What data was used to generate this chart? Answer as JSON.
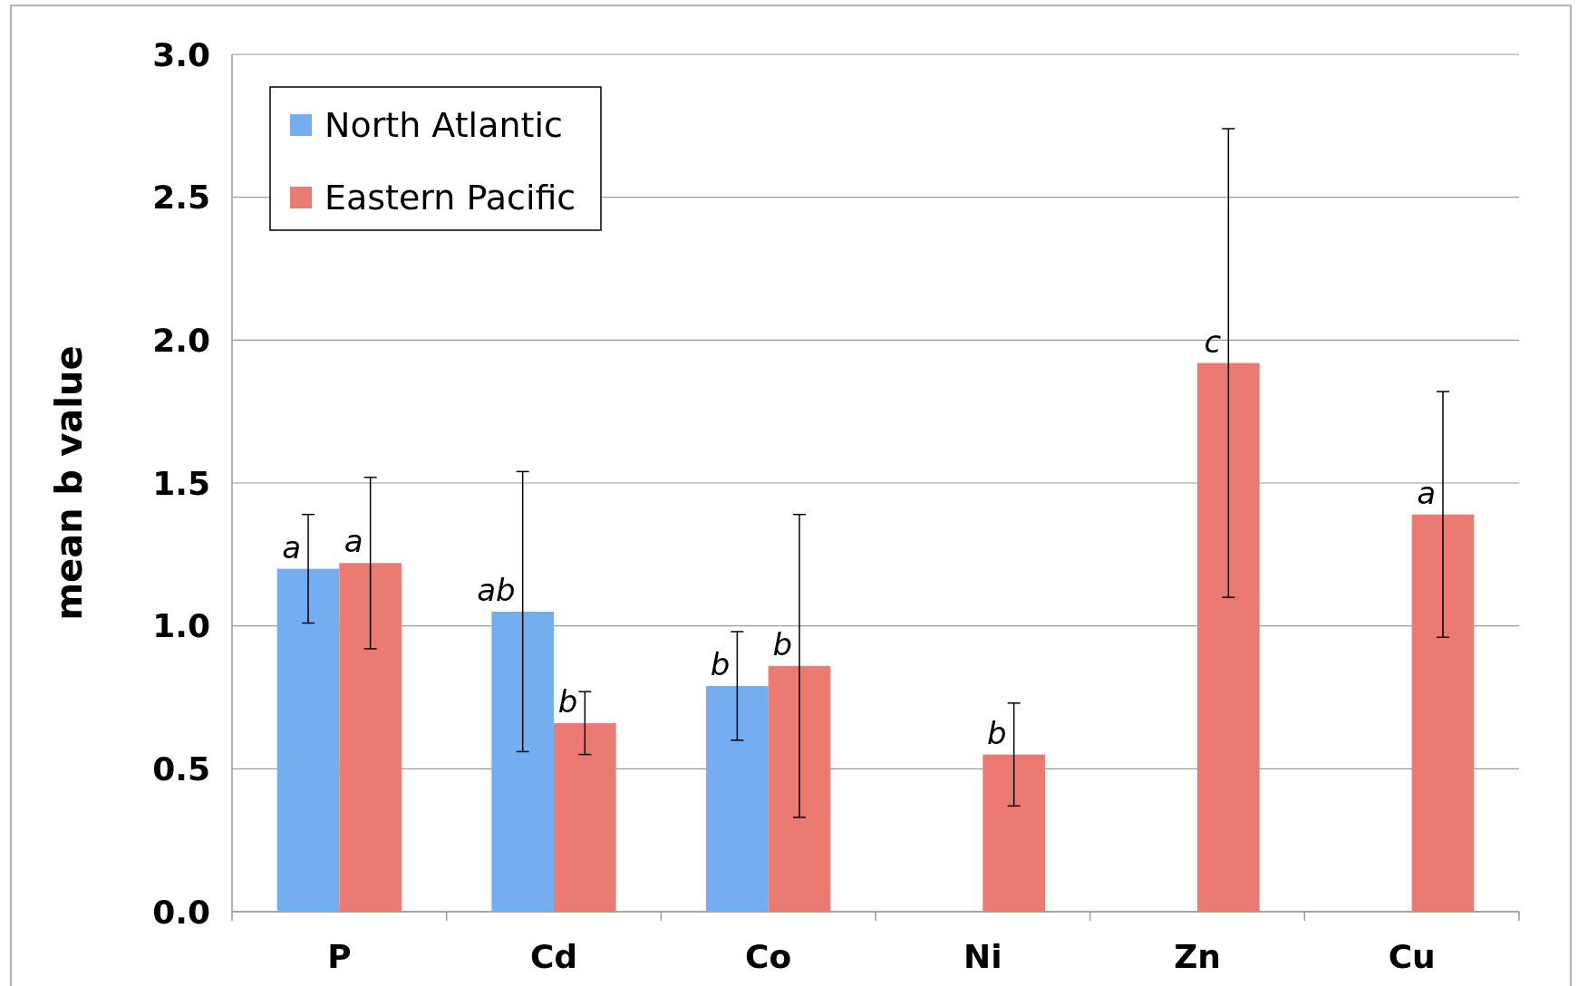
{
  "chart_data": {
    "type": "bar",
    "ylabel": "mean b value",
    "categories": [
      "P",
      "Cd",
      "Co",
      "Ni",
      "Zn",
      "Cu"
    ],
    "series": [
      {
        "name": "North Atlantic",
        "color": "#74aef0",
        "values": [
          1.2,
          1.05,
          0.79,
          null,
          null,
          null
        ],
        "errors": [
          0.19,
          0.49,
          0.19,
          null,
          null,
          null
        ]
      },
      {
        "name": "Eastern Pacific",
        "color": "#ea7a72",
        "values": [
          1.22,
          0.66,
          0.86,
          0.55,
          1.92,
          1.39
        ],
        "errors": [
          0.3,
          0.11,
          0.53,
          0.18,
          0.82,
          0.43
        ]
      }
    ],
    "ylim": [
      0,
      3
    ],
    "yticks": [
      {
        "value": 0,
        "label": "0.0"
      },
      {
        "value": 0.5,
        "label": "0.5"
      },
      {
        "value": 1,
        "label": "1.0"
      },
      {
        "value": 1.5,
        "label": "1.5"
      },
      {
        "value": 2,
        "label": "2.0"
      },
      {
        "value": 2.5,
        "label": "2.5"
      },
      {
        "value": 3,
        "label": "3.0"
      }
    ],
    "grid": "y",
    "legend": "top left",
    "annotations": [
      "a",
      "a",
      "ab",
      "b",
      "b",
      "b",
      "b",
      "c",
      "a"
    ]
  }
}
